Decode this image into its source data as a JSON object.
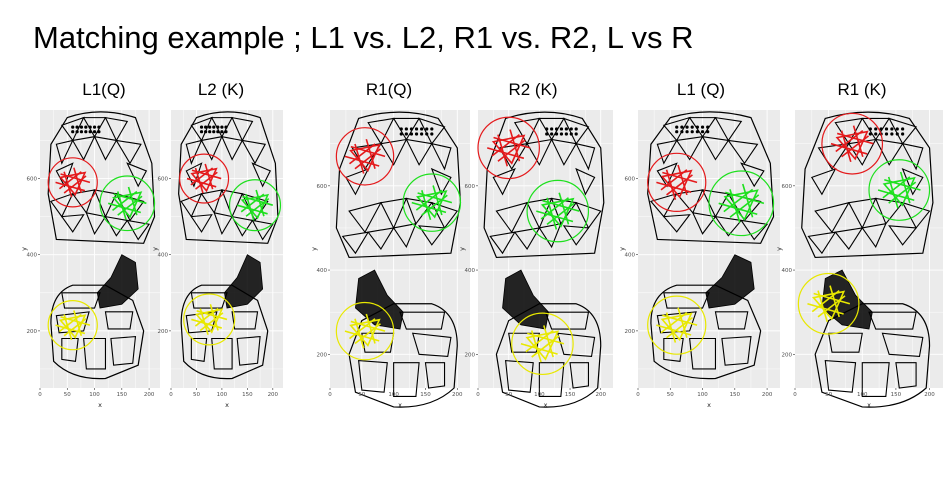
{
  "title": "Matching example ; L1 vs. L2, R1 vs. R2, L vs R",
  "colors": {
    "red": "#e41a1c",
    "green": "#1ee01e",
    "yellow": "#e8e800",
    "panel_bg": "#ebebeb",
    "grid": "#ffffff",
    "ink": "#000000"
  },
  "chart_data": [
    {
      "type": "scatter",
      "label": "L1(Q)",
      "xlabel": "x",
      "ylabel": "y",
      "xlim": [
        0,
        220
      ],
      "ylim": [
        50,
        780
      ],
      "xticks": [
        "0",
        "50",
        "100",
        "150",
        "200"
      ],
      "yticks": [
        {
          "v": 200,
          "t": "200"
        },
        {
          "v": 400,
          "t": "400"
        },
        {
          "v": 600,
          "t": "600"
        }
      ],
      "matches": [
        {
          "color": "red",
          "x": 60,
          "y": 590,
          "r": 45
        },
        {
          "color": "green",
          "x": 160,
          "y": 535,
          "r": 50
        },
        {
          "color": "yellow",
          "x": 60,
          "y": 215,
          "r": 45
        }
      ]
    },
    {
      "type": "scatter",
      "label": "L2 (K)",
      "xlabel": "x",
      "ylabel": "y",
      "xlim": [
        0,
        220
      ],
      "ylim": [
        50,
        780
      ],
      "xticks": [
        "0",
        "50",
        "100",
        "150",
        "200"
      ],
      "yticks": [
        {
          "v": 200,
          "t": "200"
        },
        {
          "v": 400,
          "t": "400"
        },
        {
          "v": 600,
          "t": "600"
        }
      ],
      "matches": [
        {
          "color": "red",
          "x": 65,
          "y": 600,
          "r": 48
        },
        {
          "color": "green",
          "x": 165,
          "y": 530,
          "r": 50
        },
        {
          "color": "yellow",
          "x": 75,
          "y": 230,
          "r": 50
        }
      ]
    },
    {
      "type": "scatter",
      "label": "R1(Q)",
      "xlabel": "x",
      "ylabel": "y",
      "xlim": [
        0,
        220
      ],
      "ylim": [
        120,
        780
      ],
      "xticks": [
        "0",
        "50",
        "100",
        "150",
        "200"
      ],
      "yticks": [
        {
          "v": 200,
          "t": "200"
        },
        {
          "v": 400,
          "t": "400"
        },
        {
          "v": 600,
          "t": "600"
        }
      ],
      "matches": [
        {
          "color": "red",
          "x": 55,
          "y": 670,
          "r": 45
        },
        {
          "color": "green",
          "x": 160,
          "y": 560,
          "r": 45
        },
        {
          "color": "yellow",
          "x": 55,
          "y": 255,
          "r": 45
        }
      ]
    },
    {
      "type": "scatter",
      "label": "R2 (K)",
      "xlabel": "x",
      "ylabel": "y",
      "xlim": [
        0,
        220
      ],
      "ylim": [
        120,
        780
      ],
      "xticks": [
        "0",
        "50",
        "100",
        "150",
        "200"
      ],
      "yticks": [
        {
          "v": 200,
          "t": "200"
        },
        {
          "v": 400,
          "t": "400"
        },
        {
          "v": 600,
          "t": "600"
        }
      ],
      "matches": [
        {
          "color": "red",
          "x": 50,
          "y": 690,
          "r": 50
        },
        {
          "color": "green",
          "x": 130,
          "y": 540,
          "r": 50
        },
        {
          "color": "yellow",
          "x": 105,
          "y": 225,
          "r": 50
        }
      ]
    },
    {
      "type": "scatter",
      "label": "L1 (Q)",
      "xlabel": "x",
      "ylabel": "y",
      "xlim": [
        0,
        220
      ],
      "ylim": [
        50,
        780
      ],
      "xticks": [
        "0",
        "50",
        "100",
        "150",
        "200"
      ],
      "yticks": [
        {
          "v": 200,
          "t": "200"
        },
        {
          "v": 400,
          "t": "400"
        },
        {
          "v": 600,
          "t": "600"
        }
      ],
      "matches": [
        {
          "color": "red",
          "x": 60,
          "y": 590,
          "r": 45
        },
        {
          "color": "green",
          "x": 160,
          "y": 535,
          "r": 50
        },
        {
          "color": "yellow",
          "x": 60,
          "y": 215,
          "r": 45
        }
      ]
    },
    {
      "type": "scatter",
      "label": "R1 (K)",
      "xlabel": "x",
      "ylabel": "y",
      "xlim": [
        0,
        220
      ],
      "ylim": [
        120,
        780
      ],
      "xticks": [
        "0",
        "50",
        "100",
        "150",
        "200"
      ],
      "yticks": [
        {
          "v": 200,
          "t": "200"
        },
        {
          "v": 400,
          "t": "400"
        },
        {
          "v": 600,
          "t": "600"
        }
      ],
      "matches": [
        {
          "color": "red",
          "x": 85,
          "y": 700,
          "r": 45
        },
        {
          "color": "green",
          "x": 155,
          "y": 590,
          "r": 45
        },
        {
          "color": "yellow",
          "x": 50,
          "y": 320,
          "r": 45
        }
      ]
    }
  ]
}
